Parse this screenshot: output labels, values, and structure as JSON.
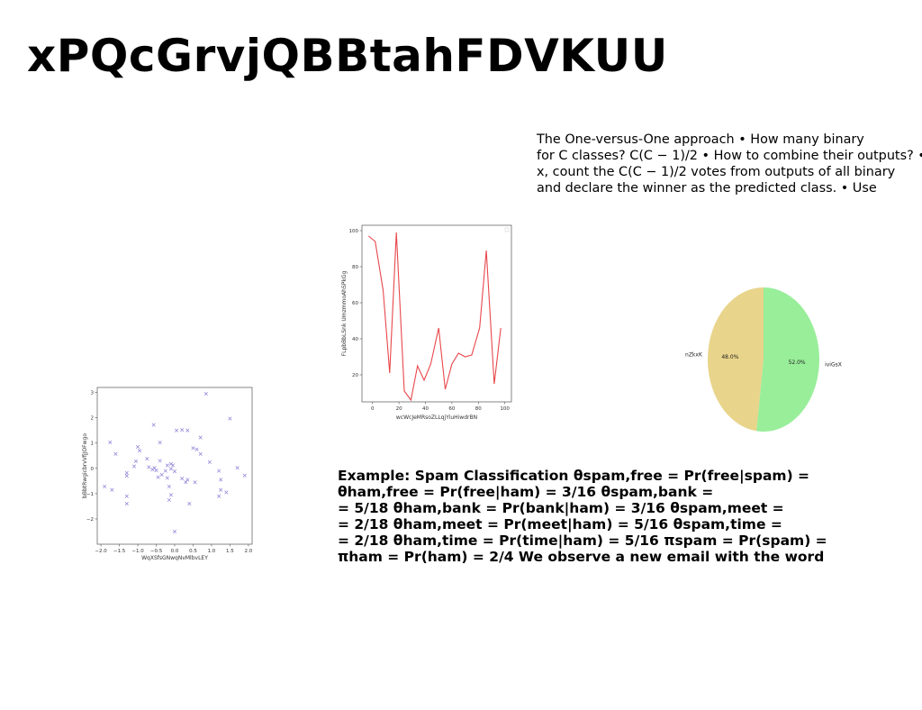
{
  "slide": {
    "title": "xPQcGrvjQBBtahFDVKUU"
  },
  "text_block": {
    "lines": [
      "The One-versus-One approach • How many binary",
      "for C classes? C(C − 1)/2 • How to combine their outputs? •",
      "x, count the C(C − 1)/2 votes from outputs of all binary",
      "and declare the winner as the predicted class. • Use"
    ]
  },
  "example": {
    "lines": [
      "Example: Spam Classification θspam,free = Pr(free|spam) =",
      "θham,free = Pr(free|ham) = 3/16 θspam,bank =",
      "= 5/18 θham,bank = Pr(bank|ham) = 3/16 θspam,meet =",
      "= 2/18 θham,meet = Pr(meet|ham) = 5/16 θspam,time =",
      "= 2/18 θham,time = Pr(time|ham) = 5/16 πspam = Pr(spam) =",
      "πham = Pr(ham) = 2/4 We observe a new email with the word"
    ]
  },
  "chart_data": [
    {
      "type": "line",
      "xlabel": "wcWcJeMRsoZLLqjYiuHiwdrBN",
      "ylabel": "FLpbBbLSnk UmzmmoAhSPkGg",
      "xlim": [
        -8,
        105
      ],
      "ylim": [
        5,
        103
      ],
      "xticks": [
        0,
        20,
        40,
        60,
        80,
        100
      ],
      "yticks": [
        20,
        40,
        60,
        80,
        100
      ],
      "color": "#e8474b",
      "x": [
        -3,
        2,
        8,
        13,
        18,
        24,
        29,
        34,
        39,
        44,
        50,
        55,
        60,
        65,
        70,
        75,
        81,
        86,
        92,
        97
      ],
      "y": [
        97,
        94,
        67,
        21,
        99,
        11,
        6,
        25,
        17,
        26,
        46,
        12,
        26,
        32,
        30,
        31,
        46,
        89,
        15,
        46
      ]
    },
    {
      "type": "scatter",
      "xlabel": "WqXSfsGNwqNvMlbvLEY",
      "ylabel": "bBbtRwgicbrvVfjJOFwgo",
      "xlim": [
        -2.1,
        2.1
      ],
      "ylim": [
        -3.0,
        3.2
      ],
      "xticks": [
        -2.0,
        -1.5,
        -1.0,
        -0.5,
        0.0,
        0.5,
        1.0,
        1.5,
        2.0
      ],
      "xtick_labels": [
        "−2.0",
        "−1.5",
        "−1.0",
        "−0.5",
        "0.0",
        "0.5",
        "1.0",
        "1.5",
        "2.0"
      ],
      "yticks": [
        -2,
        -1,
        0,
        1,
        2,
        3
      ],
      "ytick_labels": [
        "−2",
        "−1",
        "0",
        "1",
        "2",
        "3"
      ],
      "marker": "x",
      "color": "#8c7fd6",
      "points": [
        [
          0.85,
          2.95
        ],
        [
          1.5,
          1.97
        ],
        [
          -0.57,
          1.72
        ],
        [
          0.05,
          1.5
        ],
        [
          0.2,
          1.52
        ],
        [
          0.35,
          1.5
        ],
        [
          -1.75,
          1.03
        ],
        [
          -0.4,
          1.02
        ],
        [
          0.7,
          1.22
        ],
        [
          -1.0,
          0.85
        ],
        [
          -0.95,
          0.7
        ],
        [
          0.5,
          0.8
        ],
        [
          0.6,
          0.75
        ],
        [
          -1.6,
          0.57
        ],
        [
          0.7,
          0.57
        ],
        [
          -0.75,
          0.38
        ],
        [
          -1.05,
          0.28
        ],
        [
          -0.4,
          0.3
        ],
        [
          0.95,
          0.25
        ],
        [
          -1.1,
          0.08
        ],
        [
          -0.7,
          0.05
        ],
        [
          -0.55,
          0.02
        ],
        [
          -0.6,
          -0.05
        ],
        [
          -0.5,
          -0.08
        ],
        [
          -0.2,
          0.12
        ],
        [
          -0.1,
          0.18
        ],
        [
          -0.05,
          0.12
        ],
        [
          -0.25,
          -0.1
        ],
        [
          -0.1,
          -0.02
        ],
        [
          0.0,
          -0.12
        ],
        [
          1.2,
          -0.1
        ],
        [
          1.7,
          0.02
        ],
        [
          -1.3,
          -0.18
        ],
        [
          -1.3,
          -0.3
        ],
        [
          -0.35,
          -0.25
        ],
        [
          1.9,
          -0.28
        ],
        [
          -0.45,
          -0.35
        ],
        [
          -0.2,
          -0.38
        ],
        [
          0.2,
          -0.4
        ],
        [
          0.35,
          -0.45
        ],
        [
          0.3,
          -0.55
        ],
        [
          0.55,
          -0.55
        ],
        [
          1.25,
          -0.45
        ],
        [
          1.25,
          -0.85
        ],
        [
          1.4,
          -0.95
        ],
        [
          -1.7,
          -0.85
        ],
        [
          -1.9,
          -0.72
        ],
        [
          -0.15,
          -0.72
        ],
        [
          -0.1,
          -1.05
        ],
        [
          1.2,
          -1.1
        ],
        [
          -1.3,
          -1.1
        ],
        [
          -0.15,
          -1.25
        ],
        [
          -1.3,
          -1.4
        ],
        [
          0.4,
          -1.4
        ],
        [
          0.0,
          -2.5
        ]
      ]
    },
    {
      "type": "pie",
      "labels": [
        "nZkxK",
        "iviGsX"
      ],
      "values": [
        48.0,
        52.0
      ],
      "pct_labels": [
        "48.0%",
        "52.0%"
      ],
      "colors": [
        "#e8d48b",
        "#98ee99"
      ]
    }
  ]
}
